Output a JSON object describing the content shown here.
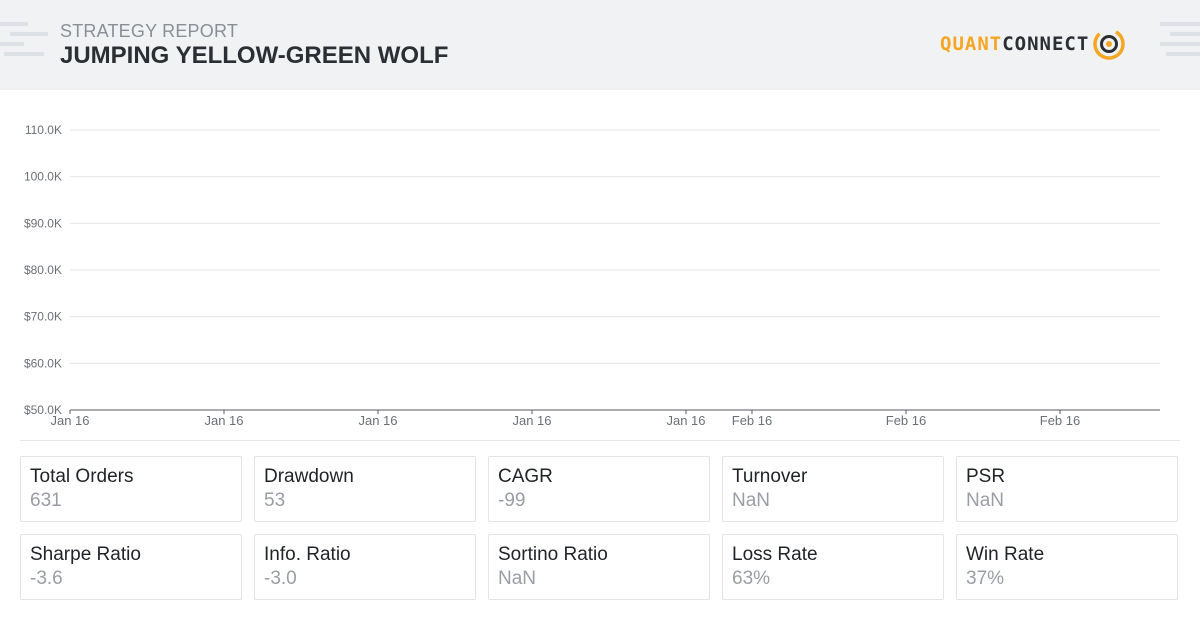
{
  "header": {
    "subtitle": "STRATEGY REPORT",
    "title": "JUMPING YELLOW-GREEN WOLF",
    "logo": {
      "part1": "QUANT",
      "part2": "CONNECT",
      "icon": "quantconnect-logo-icon"
    }
  },
  "colors": {
    "accent": "#f5a623",
    "header_bg": "#f1f2f4",
    "text_dark": "#2b2e33",
    "text_muted": "#9a9ea4"
  },
  "chart_data": {
    "type": "line",
    "title": "",
    "xlabel": "",
    "ylabel": "",
    "y_ticks": [
      "110.0K",
      "100.0K",
      "$90.0K",
      "$80.0K",
      "$70.0K",
      "$60.0K",
      "$50.0K"
    ],
    "y_tick_values": [
      110000,
      100000,
      90000,
      80000,
      70000,
      60000,
      50000
    ],
    "ylim": [
      50000,
      110000
    ],
    "x_ticks": [
      "Jan 16",
      "Jan 16",
      "Jan 16",
      "Jan 16",
      "Jan 16",
      "Feb 16",
      "Feb 16",
      "Feb 16"
    ],
    "series": [],
    "grid": true
  },
  "stats": [
    {
      "label": "Total Orders",
      "value": "631"
    },
    {
      "label": "Drawdown",
      "value": "53"
    },
    {
      "label": "CAGR",
      "value": "-99"
    },
    {
      "label": "Turnover",
      "value": "NaN"
    },
    {
      "label": "PSR",
      "value": "NaN"
    },
    {
      "label": "Sharpe Ratio",
      "value": "-3.6"
    },
    {
      "label": "Info. Ratio",
      "value": "-3.0"
    },
    {
      "label": "Sortino Ratio",
      "value": "NaN"
    },
    {
      "label": "Loss Rate",
      "value": "63%"
    },
    {
      "label": "Win Rate",
      "value": "37%"
    }
  ]
}
